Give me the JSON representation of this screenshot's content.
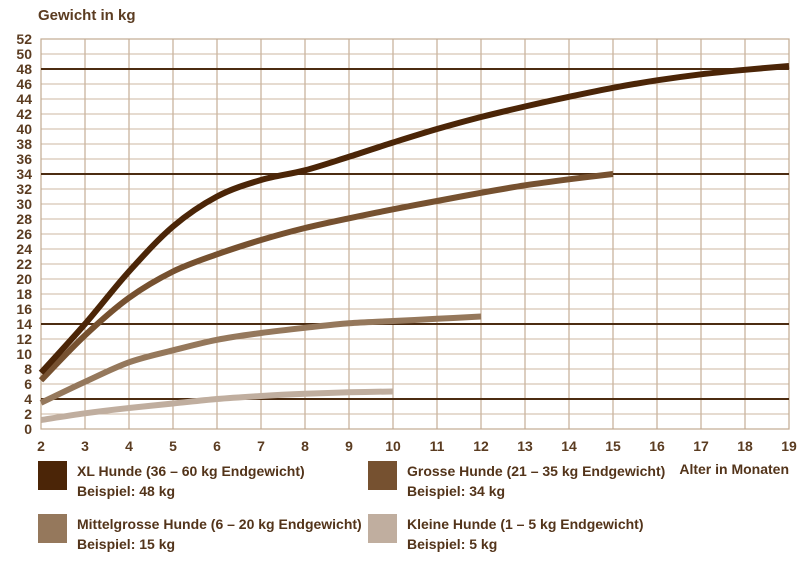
{
  "chart_data": {
    "type": "line",
    "title": "Gewicht in kg",
    "ylabel": "Gewicht in kg",
    "xlabel": "Alter in Monaten",
    "xlim": [
      2,
      19
    ],
    "ylim": [
      0,
      52
    ],
    "x_ticks": [
      2,
      3,
      4,
      5,
      6,
      7,
      8,
      9,
      10,
      11,
      12,
      13,
      14,
      15,
      16,
      17,
      18,
      19
    ],
    "y_ticks": [
      0,
      2,
      4,
      6,
      8,
      10,
      12,
      14,
      16,
      18,
      20,
      22,
      24,
      26,
      28,
      30,
      32,
      34,
      36,
      38,
      40,
      42,
      44,
      46,
      48,
      50,
      52
    ],
    "grid": true,
    "legend_position": "bottom",
    "reference_lines": [
      48,
      34,
      14,
      4
    ],
    "colors": {
      "grid_vertical": "#b89c80",
      "grid_horizontal": "#ccb7a1",
      "plot_border": "#c2aa91",
      "reference_line": "#4c2c11",
      "text": "#5b3c21"
    },
    "series": [
      {
        "name": "xl-hunde",
        "label": "XL Hunde (36 – 60 kg Endgewicht)",
        "beispiel": "Beispiel: 48 kg",
        "color": "#4b2507",
        "points": [
          [
            2,
            7.5
          ],
          [
            3,
            14
          ],
          [
            4,
            21
          ],
          [
            5,
            27
          ],
          [
            6,
            31
          ],
          [
            7,
            33.2
          ],
          [
            8,
            34.5
          ],
          [
            9,
            36.3
          ],
          [
            10,
            38.2
          ],
          [
            11,
            40
          ],
          [
            12,
            41.6
          ],
          [
            13,
            43
          ],
          [
            14,
            44.3
          ],
          [
            15,
            45.5
          ],
          [
            16,
            46.5
          ],
          [
            17,
            47.3
          ],
          [
            18,
            47.9
          ],
          [
            19,
            48.4
          ]
        ]
      },
      {
        "name": "grosse-hunde",
        "label": "Grosse Hunde (21 – 35 kg Endgewicht)",
        "beispiel": "Beispiel: 34 kg",
        "color": "#765130",
        "points": [
          [
            2,
            6.5
          ],
          [
            3,
            12.5
          ],
          [
            4,
            17.5
          ],
          [
            5,
            21
          ],
          [
            6,
            23.3
          ],
          [
            7,
            25.2
          ],
          [
            8,
            26.8
          ],
          [
            9,
            28.1
          ],
          [
            10,
            29.3
          ],
          [
            11,
            30.4
          ],
          [
            12,
            31.5
          ],
          [
            13,
            32.5
          ],
          [
            14,
            33.3
          ],
          [
            15,
            34
          ]
        ]
      },
      {
        "name": "mittelgrosse-hunde",
        "label": "Mittelgrosse Hunde (6 – 20 kg Endgewicht)",
        "beispiel": "Beispiel: 15 kg",
        "color": "#95785c",
        "points": [
          [
            2,
            3.5
          ],
          [
            3,
            6.3
          ],
          [
            4,
            8.9
          ],
          [
            5,
            10.5
          ],
          [
            6,
            11.9
          ],
          [
            7,
            12.8
          ],
          [
            8,
            13.5
          ],
          [
            9,
            14.1
          ],
          [
            10,
            14.4
          ],
          [
            11,
            14.7
          ],
          [
            12,
            15
          ]
        ]
      },
      {
        "name": "kleine-hunde",
        "label": "Kleine Hunde (1 – 5 kg Endgewicht)",
        "beispiel": "Beispiel: 5 kg",
        "color": "#c0ae9f",
        "points": [
          [
            2,
            1.2
          ],
          [
            3,
            2.1
          ],
          [
            4,
            2.8
          ],
          [
            5,
            3.4
          ],
          [
            6,
            4
          ],
          [
            7,
            4.4
          ],
          [
            8,
            4.7
          ],
          [
            9,
            4.9
          ],
          [
            10,
            5
          ]
        ]
      }
    ]
  }
}
